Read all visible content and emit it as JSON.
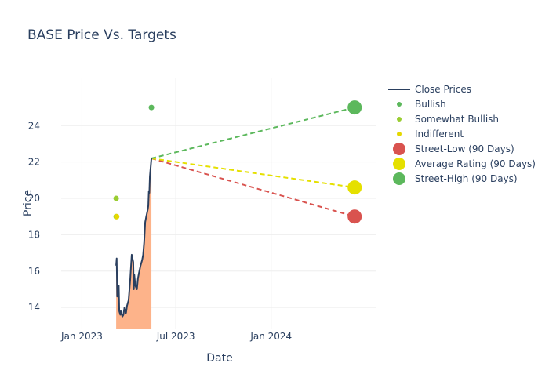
{
  "chart_data": {
    "type": "line",
    "title": "BASE Price Vs. Targets",
    "xlabel": "Date",
    "ylabel": "Price",
    "x_ticks": [
      "2023-01-01",
      "2023-07-01",
      "2024-01-01"
    ],
    "x_tick_labels": [
      "Jan 2023",
      "Jul 2023",
      "Jan 2024"
    ],
    "y_ticks": [
      14,
      16,
      18,
      20,
      22,
      24
    ],
    "xlim": [
      "2022-11-25",
      "2024-07-22"
    ],
    "ylim": [
      12.8,
      26.6
    ],
    "grid": true,
    "legend_position": "right",
    "colors": {
      "close": "#2a3f5f",
      "fill": "#fdb38a",
      "bullish": "#5cb85c",
      "somewhat_bullish": "#9acd32",
      "indifferent": "#e5d800",
      "street_low": "#d9534f",
      "average": "#e5e000",
      "street_high": "#5cb85c"
    },
    "close_prices": [
      {
        "x": "2023-03-08",
        "y": 16.3
      },
      {
        "x": "2023-03-09",
        "y": 16.7
      },
      {
        "x": "2023-03-10",
        "y": 14.6
      },
      {
        "x": "2023-03-13",
        "y": 15.2
      },
      {
        "x": "2023-03-14",
        "y": 13.8
      },
      {
        "x": "2023-03-16",
        "y": 13.6
      },
      {
        "x": "2023-03-17",
        "y": 13.8
      },
      {
        "x": "2023-03-20",
        "y": 13.5
      },
      {
        "x": "2023-03-22",
        "y": 13.6
      },
      {
        "x": "2023-03-24",
        "y": 14.0
      },
      {
        "x": "2023-03-27",
        "y": 13.7
      },
      {
        "x": "2023-03-29",
        "y": 14.1
      },
      {
        "x": "2023-04-01",
        "y": 14.4
      },
      {
        "x": "2023-04-04",
        "y": 15.5
      },
      {
        "x": "2023-04-07",
        "y": 16.9
      },
      {
        "x": "2023-04-10",
        "y": 16.5
      },
      {
        "x": "2023-04-11",
        "y": 15.0
      },
      {
        "x": "2023-04-12",
        "y": 15.8
      },
      {
        "x": "2023-04-14",
        "y": 15.2
      },
      {
        "x": "2023-04-17",
        "y": 15.0
      },
      {
        "x": "2023-04-19",
        "y": 15.6
      },
      {
        "x": "2023-04-21",
        "y": 15.9
      },
      {
        "x": "2023-04-24",
        "y": 16.3
      },
      {
        "x": "2023-04-27",
        "y": 16.6
      },
      {
        "x": "2023-04-29",
        "y": 16.9
      },
      {
        "x": "2023-05-01",
        "y": 17.6
      },
      {
        "x": "2023-05-03",
        "y": 18.7
      },
      {
        "x": "2023-05-05",
        "y": 19.0
      },
      {
        "x": "2023-05-08",
        "y": 19.4
      },
      {
        "x": "2023-05-09",
        "y": 19.6
      },
      {
        "x": "2023-05-10",
        "y": 20.4
      },
      {
        "x": "2023-05-11",
        "y": 20.3
      },
      {
        "x": "2023-05-12",
        "y": 21.2
      },
      {
        "x": "2023-05-15",
        "y": 22.2
      }
    ],
    "analyst_ratings": [
      {
        "name": "Bullish",
        "points": [
          {
            "x": "2023-05-15",
            "y": 25
          }
        ]
      },
      {
        "name": "Somewhat Bullish",
        "points": [
          {
            "x": "2023-03-08",
            "y": 20
          },
          {
            "x": "2023-03-08",
            "y": 19
          }
        ]
      },
      {
        "name": "Indifferent",
        "points": [
          {
            "x": "2023-03-09",
            "y": 19
          }
        ]
      }
    ],
    "targets": [
      {
        "name": "Street-Low (90 Days)",
        "from": {
          "x": "2023-05-15",
          "y": 22.2
        },
        "to": {
          "x": "2024-06-10",
          "y": 19
        }
      },
      {
        "name": "Average Rating (90 Days)",
        "from": {
          "x": "2023-05-15",
          "y": 22.2
        },
        "to": {
          "x": "2024-06-10",
          "y": 20.6
        }
      },
      {
        "name": "Street-High (90 Days)",
        "from": {
          "x": "2023-05-15",
          "y": 22.2
        },
        "to": {
          "x": "2024-06-10",
          "y": 25
        }
      }
    ],
    "legend": [
      "Close Prices",
      "Bullish",
      "Somewhat Bullish",
      "Indifferent",
      "Street-Low (90 Days)",
      "Average Rating (90 Days)",
      "Street-High (90 Days)"
    ]
  }
}
